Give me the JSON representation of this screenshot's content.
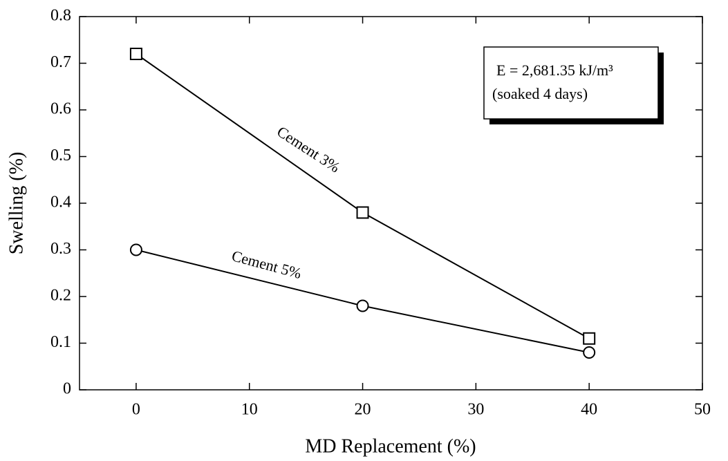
{
  "chart_data": {
    "type": "line",
    "x_label": "MD Replacement (%)",
    "y_label": "Swelling (%)",
    "x": [
      0,
      20,
      40
    ],
    "series": [
      {
        "name": "Cement 3%",
        "color": "#000000",
        "marker": "square",
        "values": [
          0.72,
          0.38,
          0.11
        ]
      },
      {
        "name": "Cement 5%",
        "color": "#000000",
        "marker": "circle",
        "values": [
          0.3,
          0.18,
          0.08
        ]
      }
    ],
    "annotations": [
      "E = 2,681.35 kJ/m³",
      "(soaked 4 days)"
    ],
    "xlim": [
      -5,
      50
    ],
    "xticks": [
      0,
      10,
      20,
      30,
      40,
      50
    ],
    "ylim": [
      0,
      0.8
    ],
    "yticks": [
      0,
      0.1,
      0.2,
      0.3,
      0.4,
      0.5,
      0.6,
      0.7,
      0.8
    ]
  }
}
